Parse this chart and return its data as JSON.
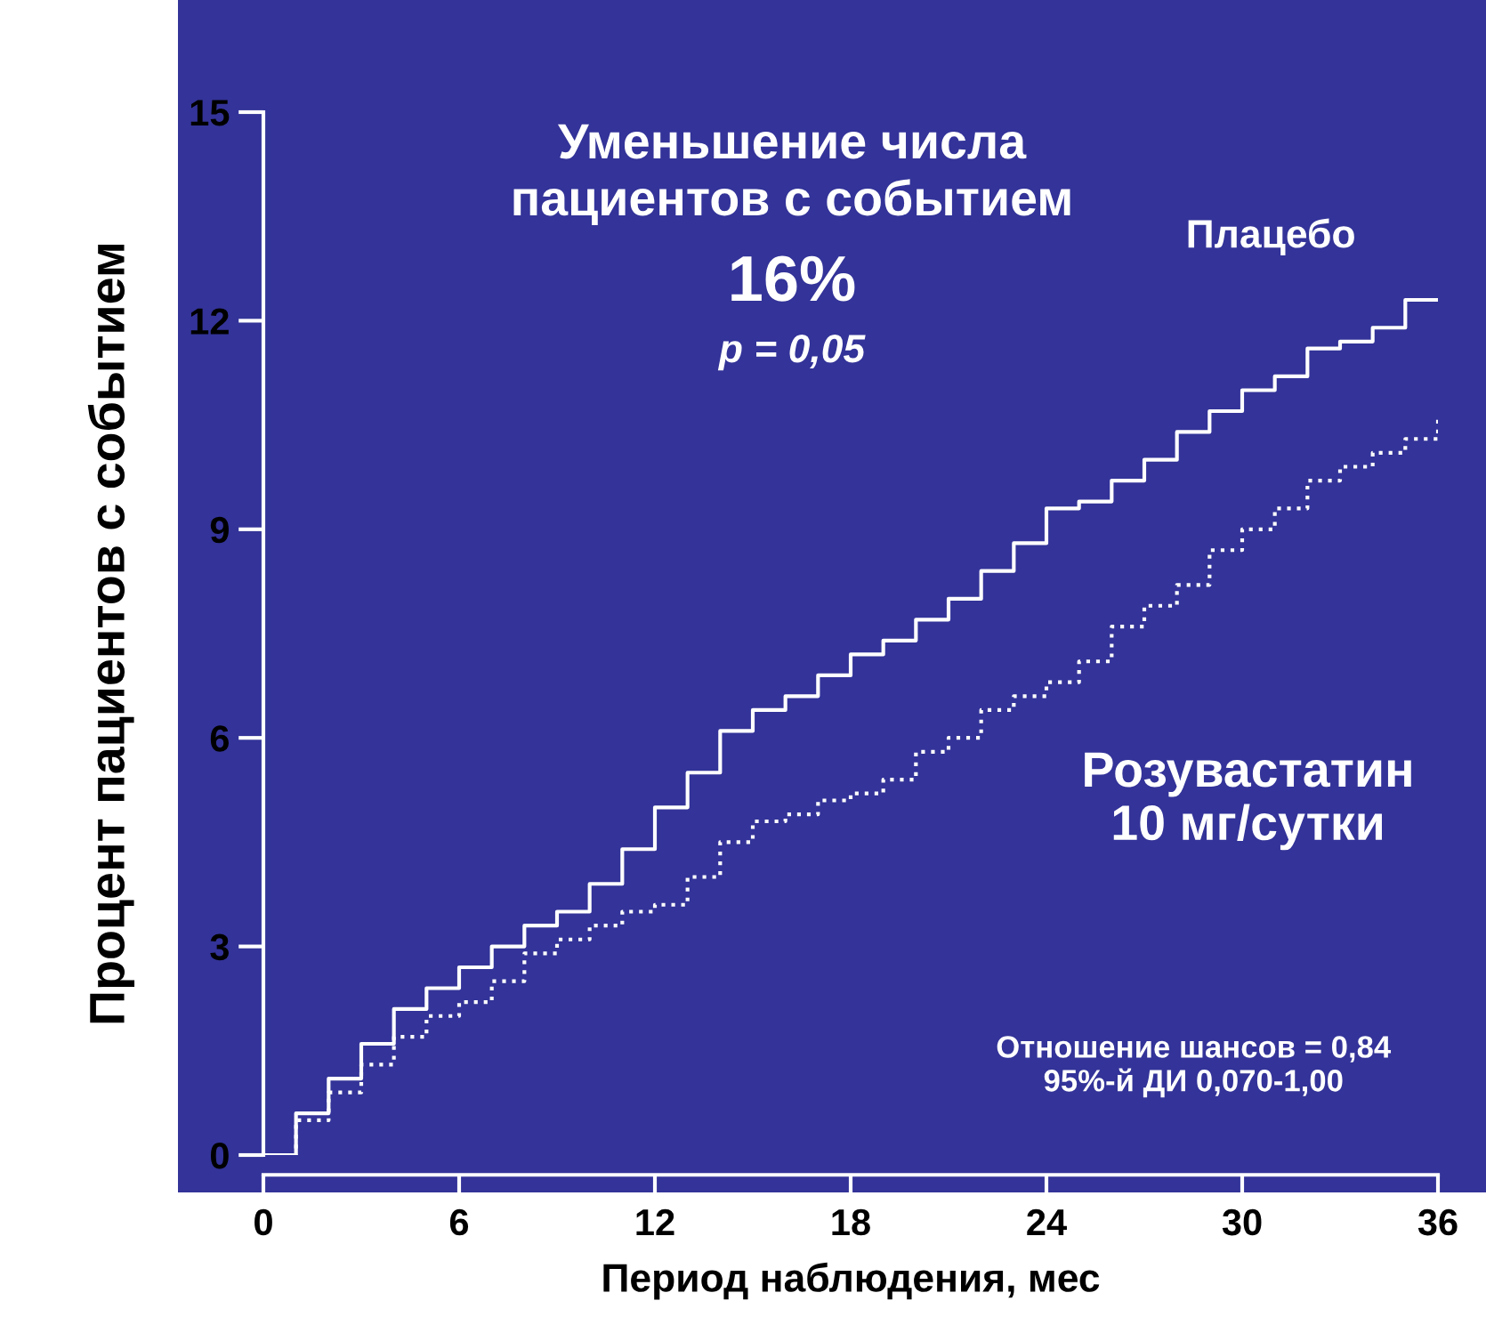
{
  "chart_data": {
    "type": "step",
    "title": "Уменьшение числа\nпациентов с событием",
    "subtitle": "16%",
    "xlabel": "Период наблюдения, мес",
    "ylabel": "Процент пациентов с событием",
    "annotations": [
      "p = 0,05",
      "Отношение шансов = 0,84\n95%-й ДИ 0,070-1,00"
    ],
    "x": [
      0,
      1,
      2,
      3,
      4,
      5,
      6,
      7,
      8,
      9,
      10,
      11,
      12,
      13,
      14,
      15,
      16,
      17,
      18,
      19,
      20,
      21,
      22,
      23,
      24,
      25,
      26,
      27,
      28,
      29,
      30,
      31,
      32,
      33,
      34,
      35,
      36
    ],
    "series": [
      {
        "name": "Плацебо",
        "color": "#ffffff",
        "line_style": "solid",
        "values": [
          0,
          0.6,
          1.1,
          1.6,
          2.1,
          2.4,
          2.7,
          3.0,
          3.3,
          3.5,
          3.9,
          4.4,
          5.0,
          5.5,
          6.1,
          6.4,
          6.6,
          6.9,
          7.2,
          7.4,
          7.7,
          8.0,
          8.4,
          8.8,
          9.3,
          9.4,
          9.7,
          10.0,
          10.4,
          10.7,
          11.0,
          11.2,
          11.6,
          11.7,
          11.9,
          12.3,
          12.3
        ]
      },
      {
        "name": "Розувастатин\n10 мг/сутки",
        "color": "#ffffff",
        "line_style": "dotted",
        "values": [
          0,
          0.5,
          0.9,
          1.3,
          1.7,
          2.0,
          2.2,
          2.5,
          2.9,
          3.1,
          3.3,
          3.5,
          3.6,
          4.0,
          4.5,
          4.8,
          4.9,
          5.1,
          5.2,
          5.4,
          5.8,
          6.0,
          6.4,
          6.6,
          6.8,
          7.1,
          7.6,
          7.9,
          8.2,
          8.7,
          9.0,
          9.3,
          9.7,
          9.9,
          10.1,
          10.3,
          10.6
        ]
      }
    ],
    "xlim": [
      0,
      36
    ],
    "xticks": [
      0,
      6,
      12,
      18,
      24,
      30,
      36
    ],
    "ylim": [
      0,
      15
    ],
    "yticks": [
      0,
      3,
      6,
      9,
      12,
      15
    ],
    "grid": false,
    "legend": false
  }
}
